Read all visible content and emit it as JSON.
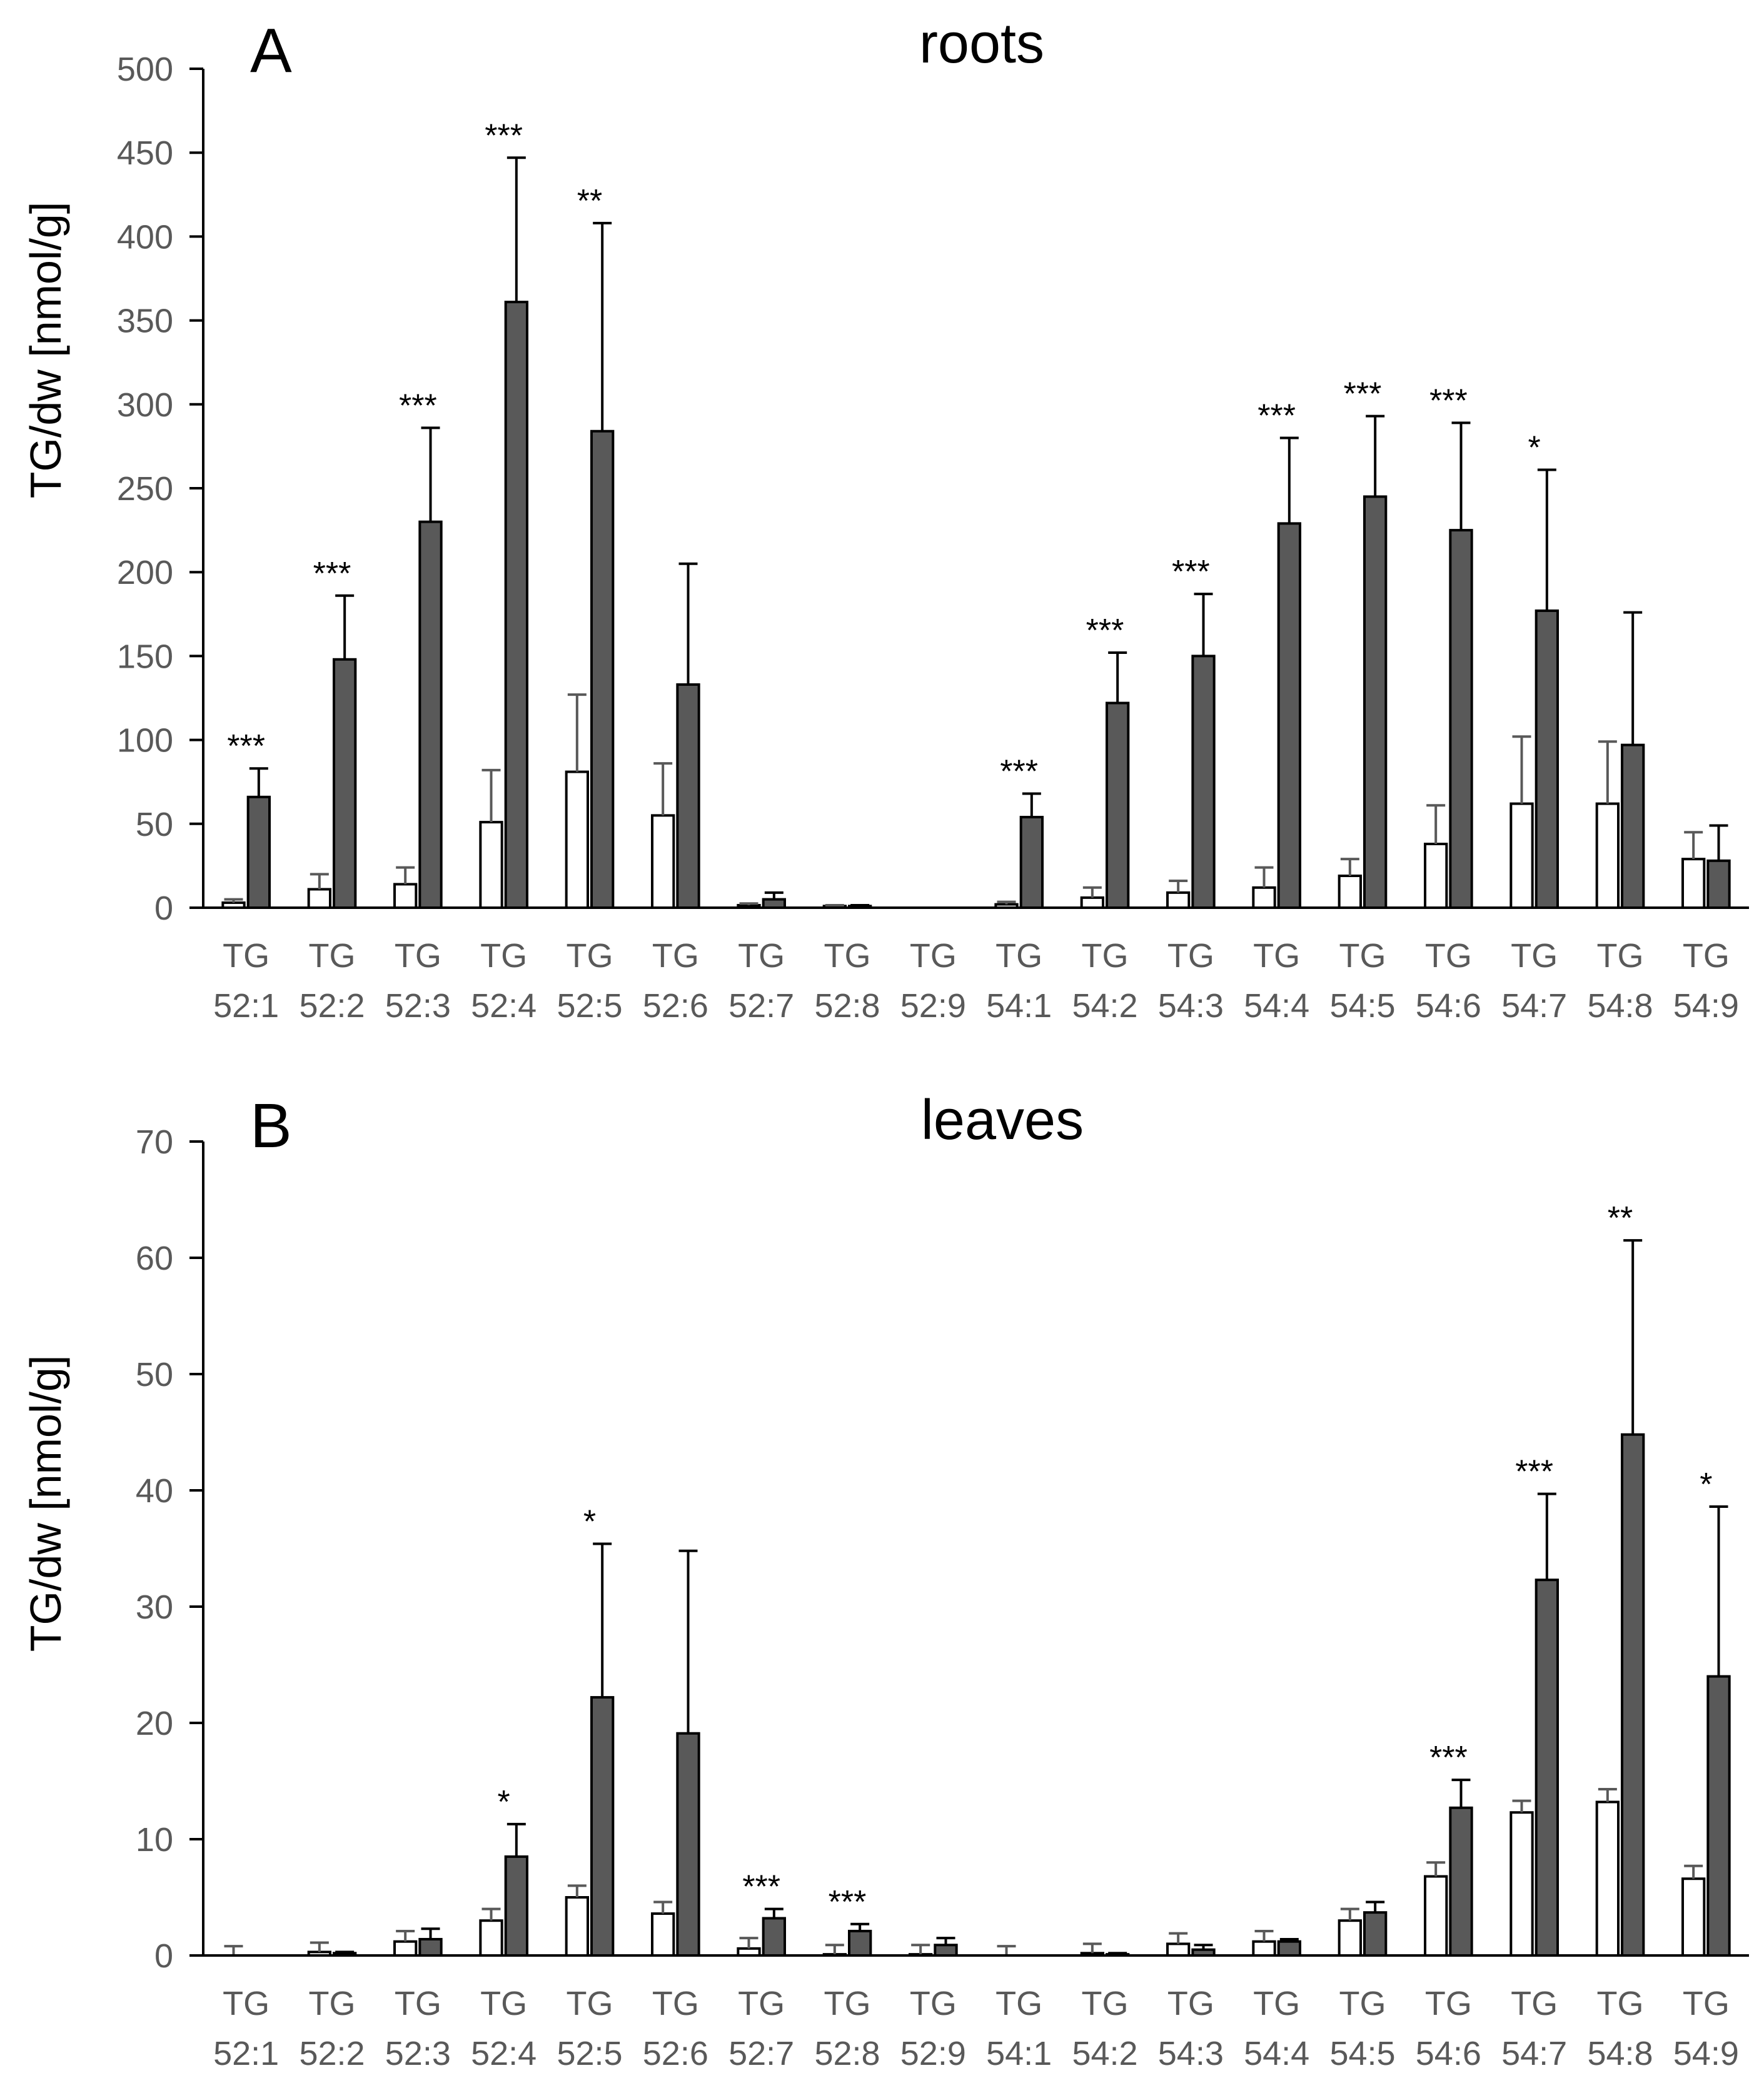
{
  "chart_data": [
    {
      "type": "bar",
      "panel": "A",
      "title": "roots",
      "ylabel": "TG/dw [nmol/g]",
      "xlabel": "",
      "ylim": [
        0,
        500
      ],
      "yticks": [
        0,
        50,
        100,
        150,
        200,
        250,
        300,
        350,
        400,
        450,
        500
      ],
      "categories": [
        [
          "TG",
          "52:1"
        ],
        [
          "TG",
          "52:2"
        ],
        [
          "TG",
          "52:3"
        ],
        [
          "TG",
          "52:4"
        ],
        [
          "TG",
          "52:5"
        ],
        [
          "TG",
          "52:6"
        ],
        [
          "TG",
          "52:7"
        ],
        [
          "TG",
          "52:8"
        ],
        [
          "TG",
          "52:9"
        ],
        [
          "TG",
          "54:1"
        ],
        [
          "TG",
          "54:2"
        ],
        [
          "TG",
          "54:3"
        ],
        [
          "TG",
          "54:4"
        ],
        [
          "TG",
          "54:5"
        ],
        [
          "TG",
          "54:6"
        ],
        [
          "TG",
          "54:7"
        ],
        [
          "TG",
          "54:8"
        ],
        [
          "TG",
          "54:9"
        ]
      ],
      "series": [
        {
          "name": "open",
          "color": "#ffffff",
          "values": [
            3,
            11,
            14,
            51,
            81,
            55,
            1.5,
            1,
            0,
            2,
            6,
            9,
            12,
            19,
            38,
            62,
            62,
            29
          ],
          "errors": [
            2,
            9,
            10,
            31,
            46,
            31,
            1,
            0.5,
            0,
            1.5,
            6,
            7,
            12,
            10,
            23,
            40,
            37,
            16
          ]
        },
        {
          "name": "filled",
          "color": "#595959",
          "values": [
            66,
            148,
            230,
            361,
            284,
            133,
            5,
            1,
            0,
            54,
            122,
            150,
            229,
            245,
            225,
            177,
            97,
            28
          ],
          "errors": [
            17,
            38,
            56,
            86,
            124,
            72,
            4,
            0.5,
            0,
            14,
            30,
            37,
            51,
            48,
            64,
            84,
            79,
            21
          ]
        }
      ],
      "significance": [
        "***",
        "***",
        "***",
        "***",
        "**",
        "",
        "",
        "",
        "",
        "***",
        "***",
        "***",
        "***",
        "***",
        "***",
        "*",
        "",
        ""
      ]
    },
    {
      "type": "bar",
      "panel": "B",
      "title": "leaves",
      "ylabel": "TG/dw [nmol/g]",
      "xlabel": "",
      "ylim": [
        0,
        70
      ],
      "yticks": [
        0,
        10,
        20,
        30,
        40,
        50,
        60,
        70
      ],
      "categories": [
        [
          "TG",
          "52:1"
        ],
        [
          "TG",
          "52:2"
        ],
        [
          "TG",
          "52:3"
        ],
        [
          "TG",
          "52:4"
        ],
        [
          "TG",
          "52:5"
        ],
        [
          "TG",
          "52:6"
        ],
        [
          "TG",
          "52:7"
        ],
        [
          "TG",
          "52:8"
        ],
        [
          "TG",
          "52:9"
        ],
        [
          "TG",
          "54:1"
        ],
        [
          "TG",
          "54:2"
        ],
        [
          "TG",
          "54:3"
        ],
        [
          "TG",
          "54:4"
        ],
        [
          "TG",
          "54:5"
        ],
        [
          "TG",
          "54:6"
        ],
        [
          "TG",
          "54:7"
        ],
        [
          "TG",
          "54:8"
        ],
        [
          "TG",
          "54:9"
        ]
      ],
      "series": [
        {
          "name": "open",
          "color": "#ffffff",
          "values": [
            0,
            0.3,
            1.2,
            3.0,
            5.0,
            3.6,
            0.6,
            0.1,
            0.1,
            0,
            0.2,
            1.0,
            1.2,
            3.0,
            6.8,
            12.3,
            13.2,
            6.6
          ],
          "errors": [
            0.8,
            0.8,
            0.9,
            1.0,
            1.0,
            1.0,
            0.9,
            0.8,
            0.8,
            0.8,
            0.8,
            0.9,
            0.9,
            1.0,
            1.2,
            1.0,
            1.1,
            1.1
          ]
        },
        {
          "name": "filled",
          "color": "#595959",
          "values": [
            0,
            0.2,
            1.4,
            8.5,
            22.2,
            19.1,
            3.2,
            2.1,
            0.9,
            0,
            0.1,
            0.5,
            1.2,
            3.7,
            12.7,
            32.3,
            44.8,
            24.0
          ],
          "errors": [
            0,
            0.1,
            0.9,
            2.8,
            13.2,
            15.7,
            0.8,
            0.6,
            0.6,
            0,
            0.1,
            0.4,
            0.2,
            0.9,
            2.4,
            7.4,
            16.7,
            14.6
          ]
        }
      ],
      "significance": [
        "",
        "",
        "",
        "*",
        "*",
        "",
        "***",
        "***",
        "",
        "",
        "",
        "",
        "",
        "",
        "***",
        "***",
        "**",
        "*"
      ]
    }
  ]
}
